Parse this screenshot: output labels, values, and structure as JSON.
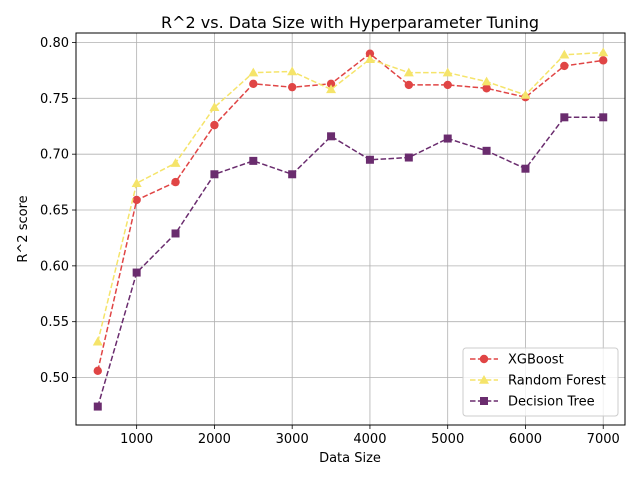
{
  "chart_data": {
    "type": "line",
    "title": "R^2 vs. Data Size with Hyperparameter Tuning",
    "xlabel": "Data Size",
    "ylabel": "R^2 score",
    "x": [
      500,
      1000,
      1500,
      2000,
      2500,
      3000,
      3500,
      4000,
      4500,
      5000,
      5500,
      6000,
      6500,
      7000
    ],
    "xlim": [
      220,
      7280
    ],
    "ylim": [
      0.4575,
      0.8085
    ],
    "xticks": [
      1000,
      2000,
      3000,
      4000,
      5000,
      6000,
      7000
    ],
    "xtick_labels": [
      "1000",
      "2000",
      "3000",
      "4000",
      "5000",
      "6000",
      "7000"
    ],
    "yticks": [
      0.5,
      0.55,
      0.6,
      0.65,
      0.7,
      0.75,
      0.8
    ],
    "ytick_labels": [
      "0.50",
      "0.55",
      "0.60",
      "0.65",
      "0.70",
      "0.75",
      "0.80"
    ],
    "grid": true,
    "legend_position": "lower-right",
    "series": [
      {
        "name": "XGBoost",
        "color": "#e04545",
        "marker": "circle",
        "line_style": "dashed",
        "values": [
          0.506,
          0.659,
          0.675,
          0.726,
          0.763,
          0.76,
          0.763,
          0.79,
          0.762,
          0.762,
          0.759,
          0.751,
          0.779,
          0.784
        ]
      },
      {
        "name": "Random Forest",
        "color": "#f5e46a",
        "marker": "triangle",
        "line_style": "dashed",
        "values": [
          0.532,
          0.674,
          0.692,
          0.742,
          0.773,
          0.774,
          0.758,
          0.785,
          0.773,
          0.773,
          0.765,
          0.753,
          0.789,
          0.791
        ]
      },
      {
        "name": "Decision Tree",
        "color": "#6a2c6e",
        "marker": "square",
        "line_style": "dashed",
        "values": [
          0.474,
          0.594,
          0.629,
          0.682,
          0.694,
          0.682,
          0.716,
          0.695,
          0.697,
          0.714,
          0.703,
          0.687,
          0.733,
          0.733
        ]
      }
    ]
  }
}
